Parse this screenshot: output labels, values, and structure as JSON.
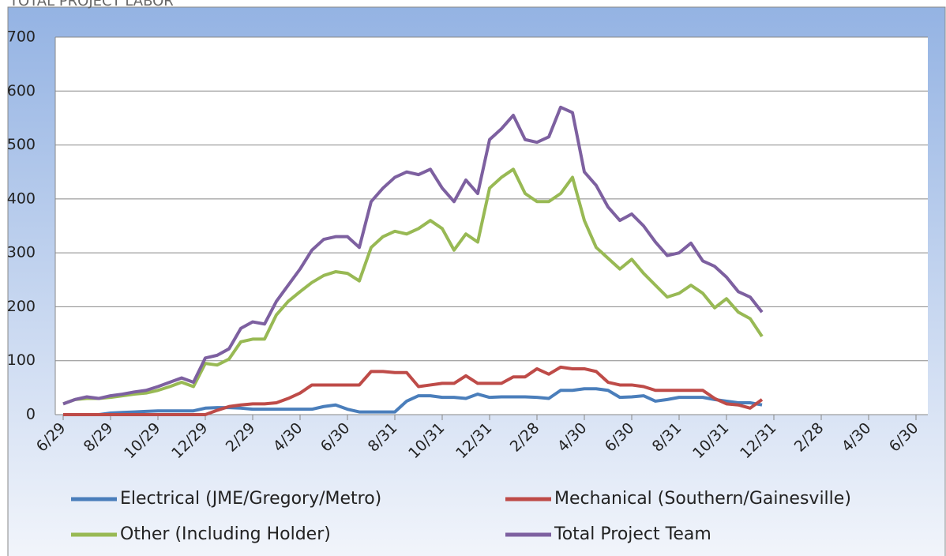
{
  "chart_data": {
    "type": "line",
    "title": "TOTAL PROJECT LABOR",
    "categories": [
      "6/29",
      null,
      null,
      null,
      "8/29",
      null,
      null,
      null,
      "10/29",
      null,
      null,
      null,
      "12/29",
      null,
      null,
      null,
      "2/29",
      null,
      null,
      null,
      "4/30",
      null,
      null,
      null,
      "6/30",
      null,
      null,
      null,
      "8/31",
      null,
      null,
      null,
      "10/31",
      null,
      null,
      null,
      "12/31",
      null,
      null,
      null,
      "2/28",
      null,
      null,
      null,
      "4/30",
      null,
      null,
      null,
      "6/30",
      null,
      null,
      null,
      "8/31",
      null,
      null,
      null,
      "10/31",
      null,
      null,
      null,
      "12/31",
      null,
      null,
      null,
      "2/28",
      null,
      null,
      null,
      "4/30",
      null,
      null,
      null,
      "6/30"
    ],
    "series": [
      {
        "name": "Electrical (JME/Gregory/Metro)",
        "color": "#4a7ebb",
        "values": [
          0,
          0,
          0,
          0,
          3,
          4,
          5,
          6,
          7,
          7,
          7,
          7,
          12,
          13,
          13,
          12,
          10,
          10,
          10,
          10,
          10,
          10,
          15,
          18,
          10,
          5,
          5,
          5,
          5,
          25,
          35,
          35,
          32,
          32,
          30,
          38,
          32,
          33,
          33,
          33,
          32,
          30,
          45,
          45,
          48,
          48,
          45,
          32,
          33,
          35,
          25,
          28,
          32,
          32,
          32,
          28,
          25,
          22,
          22,
          18,
          null,
          null,
          null,
          null,
          null,
          null,
          null,
          null,
          null,
          null,
          null,
          null,
          null
        ]
      },
      {
        "name": "Mechanical (Southern/Gainesville)",
        "color": "#be4b48",
        "values": [
          0,
          0,
          0,
          0,
          0,
          0,
          0,
          0,
          0,
          0,
          0,
          0,
          0,
          8,
          15,
          18,
          20,
          20,
          22,
          30,
          40,
          55,
          55,
          55,
          55,
          55,
          80,
          80,
          78,
          78,
          52,
          55,
          58,
          58,
          72,
          58,
          58,
          58,
          70,
          70,
          85,
          75,
          88,
          85,
          85,
          80,
          60,
          55,
          55,
          52,
          45,
          45,
          45,
          45,
          45,
          30,
          20,
          18,
          12,
          28,
          null,
          null,
          null,
          null,
          null,
          null,
          null,
          null,
          null,
          null,
          null,
          null,
          null
        ]
      },
      {
        "name": "Other (Including Holder)",
        "color": "#98b954",
        "values": [
          20,
          28,
          30,
          30,
          32,
          35,
          38,
          40,
          45,
          52,
          60,
          52,
          95,
          92,
          103,
          135,
          140,
          140,
          185,
          210,
          228,
          245,
          258,
          265,
          262,
          248,
          310,
          330,
          340,
          335,
          345,
          360,
          345,
          305,
          335,
          320,
          420,
          440,
          455,
          410,
          395,
          395,
          410,
          440,
          360,
          310,
          290,
          270,
          288,
          262,
          240,
          218,
          225,
          240,
          225,
          198,
          215,
          190,
          178,
          145,
          null,
          null,
          null,
          null,
          null,
          null,
          null,
          null,
          null,
          null,
          null,
          null,
          null
        ]
      },
      {
        "name": "Total Project Team",
        "color": "#7d60a0",
        "values": [
          20,
          28,
          33,
          30,
          35,
          38,
          42,
          45,
          52,
          60,
          68,
          60,
          105,
          110,
          122,
          160,
          172,
          168,
          210,
          240,
          270,
          305,
          325,
          330,
          330,
          310,
          395,
          420,
          440,
          450,
          445,
          455,
          420,
          395,
          435,
          410,
          510,
          530,
          555,
          510,
          505,
          515,
          570,
          560,
          450,
          425,
          385,
          360,
          372,
          350,
          320,
          295,
          300,
          318,
          285,
          275,
          255,
          228,
          218,
          190,
          null,
          null,
          null,
          null,
          null,
          null,
          null,
          null,
          null,
          null,
          null,
          null,
          null
        ]
      }
    ],
    "ylim": [
      0,
      700
    ],
    "yticks": [
      0,
      100,
      200,
      300,
      400,
      500,
      600,
      700
    ],
    "grid": true
  }
}
